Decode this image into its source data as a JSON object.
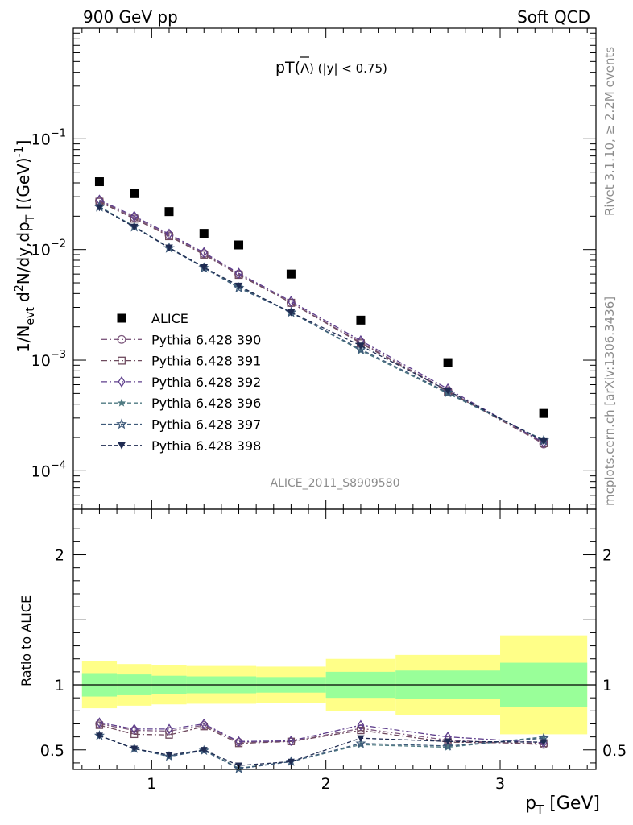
{
  "header": {
    "left": "900 GeV pp",
    "right": "Soft QCD",
    "side_top": "Rivet 3.1.10, ≥ 2.2M events",
    "side_bottom": "mcplots.cern.ch [arXiv:1306.3436]",
    "analysis": "ALICE_2011_S8909580"
  },
  "colors": {
    "data": "#000000",
    "p390": "#7f5a7f",
    "p391": "#6e4a5e",
    "p392": "#5e3e8c",
    "p396": "#4f7a82",
    "p397": "#3e5a7a",
    "p398": "#1f2b52",
    "band_inner": "#99ff99",
    "band_outer": "#ffff88"
  },
  "chart_data": [
    {
      "type": "scatter",
      "panel": "main",
      "title_main": "pT(",
      "title_symbol": "Λ",
      "title_rest": ") (|y| < 0.75)",
      "ylabel_parts": {
        "a": "1/N",
        "a_sub": "evt",
        "b": " d",
        "b_sup": "2",
        "c": "N/dy,dp",
        "c_sub": "T",
        "d": " [(GeV)",
        "d_sup": "-1",
        "e": "]"
      },
      "yscale": "log",
      "ylim": [
        4.5e-05,
        1.0
      ],
      "xlim": [
        0.55,
        3.55
      ],
      "ytick_labels": [
        {
          "base": "10",
          "exp": "−1",
          "value": 0.1
        },
        {
          "base": "10",
          "exp": "−2",
          "value": 0.01
        },
        {
          "base": "10",
          "exp": "−3",
          "value": 0.001
        },
        {
          "base": "10",
          "exp": "−4",
          "value": 0.0001
        }
      ],
      "x": [
        0.7,
        0.9,
        1.1,
        1.3,
        1.5,
        1.8,
        2.2,
        2.7,
        3.25
      ],
      "series": [
        {
          "name": "ALICE",
          "marker": "square-filled",
          "color_key": "data",
          "dash": "none",
          "values": [
            0.041,
            0.032,
            0.022,
            0.014,
            0.011,
            0.006,
            0.0023,
            0.00095,
            0.00033
          ]
        },
        {
          "name": "Pythia 6.428 390",
          "marker": "circle-open",
          "color_key": "p390",
          "dash": "dashdot",
          "values": [
            0.0275,
            0.0195,
            0.0135,
            0.0092,
            0.006,
            0.0033,
            0.00145,
            0.00053,
            0.000175
          ]
        },
        {
          "name": "Pythia 6.428 391",
          "marker": "square-open",
          "color_key": "p391",
          "dash": "dashdot",
          "values": [
            0.027,
            0.019,
            0.0132,
            0.009,
            0.0059,
            0.0033,
            0.00142,
            0.00052,
            0.000178
          ]
        },
        {
          "name": "Pythia 6.428 392",
          "marker": "diamond-open",
          "color_key": "p392",
          "dash": "dashdot",
          "values": [
            0.028,
            0.02,
            0.0138,
            0.0094,
            0.0061,
            0.0034,
            0.0015,
            0.00055,
            0.00018
          ]
        },
        {
          "name": "Pythia 6.428 396",
          "marker": "star-filled",
          "color_key": "p396",
          "dash": "dashed",
          "values": [
            0.0245,
            0.0162,
            0.0104,
            0.0069,
            0.0046,
            0.0027,
            0.00122,
            0.0005,
            0.00019
          ]
        },
        {
          "name": "Pythia 6.428 397",
          "marker": "star-open",
          "color_key": "p397",
          "dash": "dashed",
          "values": [
            0.0243,
            0.016,
            0.0103,
            0.0068,
            0.0045,
            0.0027,
            0.00125,
            0.00051,
            0.000188
          ]
        },
        {
          "name": "Pythia 6.428 398",
          "marker": "triangle-down-filled",
          "color_key": "p398",
          "dash": "dashed",
          "values": [
            0.024,
            0.016,
            0.0104,
            0.0069,
            0.0047,
            0.0027,
            0.00135,
            0.00053,
            0.000185
          ]
        }
      ]
    },
    {
      "type": "scatter",
      "panel": "ratio",
      "ylabel": "Ratio to ALICE",
      "xlabel_base": "p",
      "xlabel_sub": "T",
      "xlabel_rest": " [GeV]",
      "ylim": [
        0.35,
        2.35
      ],
      "xlim": [
        0.55,
        3.55
      ],
      "xtick_labels": [
        "1",
        "2",
        "3"
      ],
      "xtick_values": [
        1,
        2,
        3
      ],
      "ytick_labels": [
        "0.5",
        "1",
        "2"
      ],
      "ytick_values": [
        0.5,
        1,
        2
      ],
      "bands": {
        "edges": [
          0.6,
          0.8,
          1.0,
          1.2,
          1.4,
          1.6,
          2.0,
          2.4,
          3.0,
          3.5
        ],
        "inner_low": [
          0.91,
          0.92,
          0.93,
          0.935,
          0.935,
          0.94,
          0.9,
          0.89,
          0.83
        ],
        "inner_high": [
          1.09,
          1.08,
          1.07,
          1.065,
          1.065,
          1.06,
          1.1,
          1.11,
          1.17
        ],
        "outer_low": [
          0.82,
          0.84,
          0.85,
          0.855,
          0.855,
          0.86,
          0.8,
          0.77,
          0.62
        ],
        "outer_high": [
          1.18,
          1.16,
          1.15,
          1.145,
          1.145,
          1.14,
          1.2,
          1.23,
          1.38
        ]
      },
      "x": [
        0.7,
        0.9,
        1.1,
        1.3,
        1.5,
        1.8,
        2.2,
        2.7,
        3.25
      ],
      "series": [
        {
          "name": "Pythia 6.428 390",
          "marker": "circle-open",
          "color_key": "p390",
          "dash": "dashdot",
          "values": [
            0.7,
            0.65,
            0.645,
            0.69,
            0.56,
            0.565,
            0.665,
            0.575,
            0.54
          ]
        },
        {
          "name": "Pythia 6.428 391",
          "marker": "square-open",
          "color_key": "p391",
          "dash": "dashdot",
          "values": [
            0.69,
            0.62,
            0.615,
            0.68,
            0.55,
            0.565,
            0.65,
            0.56,
            0.55
          ]
        },
        {
          "name": "Pythia 6.428 392",
          "marker": "diamond-open",
          "color_key": "p392",
          "dash": "dashdot",
          "values": [
            0.71,
            0.66,
            0.66,
            0.7,
            0.565,
            0.57,
            0.69,
            0.6,
            0.555
          ]
        },
        {
          "name": "Pythia 6.428 396",
          "marker": "star-filled",
          "color_key": "p396",
          "dash": "dashed",
          "values": [
            0.61,
            0.51,
            0.45,
            0.5,
            0.36,
            0.41,
            0.54,
            0.52,
            0.6
          ]
        },
        {
          "name": "Pythia 6.428 397",
          "marker": "star-open",
          "color_key": "p397",
          "dash": "dashed",
          "values": [
            0.61,
            0.51,
            0.45,
            0.495,
            0.355,
            0.41,
            0.55,
            0.53,
            0.59
          ]
        },
        {
          "name": "Pythia 6.428 398",
          "marker": "triangle-down-filled",
          "color_key": "p398",
          "dash": "dashed",
          "values": [
            0.61,
            0.51,
            0.46,
            0.5,
            0.38,
            0.41,
            0.59,
            0.565,
            0.56
          ]
        }
      ]
    }
  ]
}
